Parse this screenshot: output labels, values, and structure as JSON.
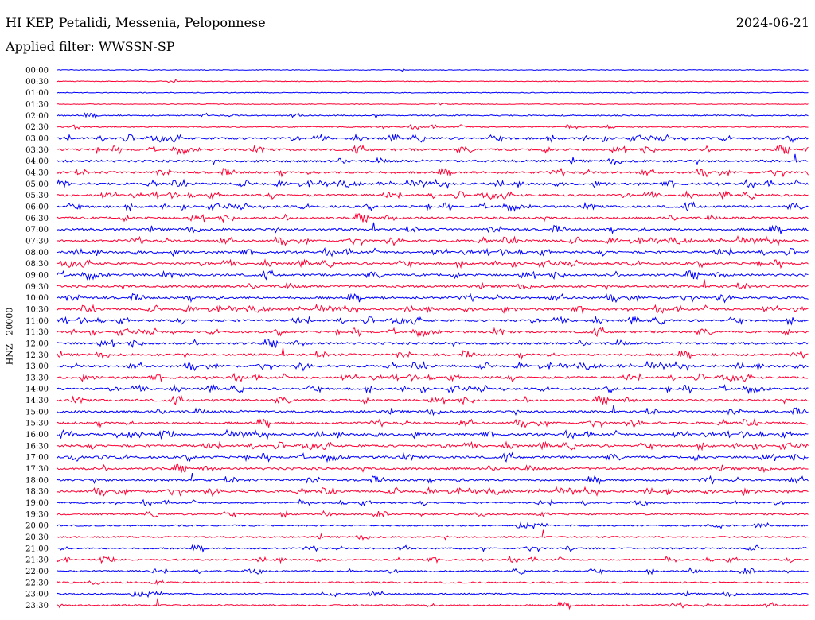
{
  "header": {
    "station": "HI KEP, Petalidi, Messenia, Peloponnese",
    "date": "2024-06-21",
    "filter_text": "Applied filter: WWSSN-SP"
  },
  "axis": {
    "ylabel": "HNZ - 20000"
  },
  "colors": {
    "even_trace": "#0000ff",
    "odd_trace": "#ff0033"
  },
  "chart_data": {
    "type": "line",
    "title": "HI KEP, Petalidi, Messenia, Peloponnese",
    "ylabel": "HNZ - 20000",
    "rows": [
      "00:00",
      "00:30",
      "01:00",
      "01:30",
      "02:00",
      "02:30",
      "03:00",
      "03:30",
      "04:00",
      "04:30",
      "05:00",
      "05:30",
      "06:00",
      "06:30",
      "07:00",
      "07:30",
      "08:00",
      "08:30",
      "09:00",
      "09:30",
      "10:00",
      "10:30",
      "11:00",
      "11:30",
      "12:00",
      "12:30",
      "13:00",
      "13:30",
      "14:00",
      "14:30",
      "15:00",
      "15:30",
      "16:00",
      "16:30",
      "17:00",
      "17:30",
      "18:00",
      "18:30",
      "19:00",
      "19:30",
      "20:00",
      "20:30",
      "21:00",
      "21:30",
      "22:00",
      "22:30",
      "23:00",
      "23:30"
    ],
    "row_colors": [
      "blue",
      "red"
    ],
    "grid": false
  }
}
